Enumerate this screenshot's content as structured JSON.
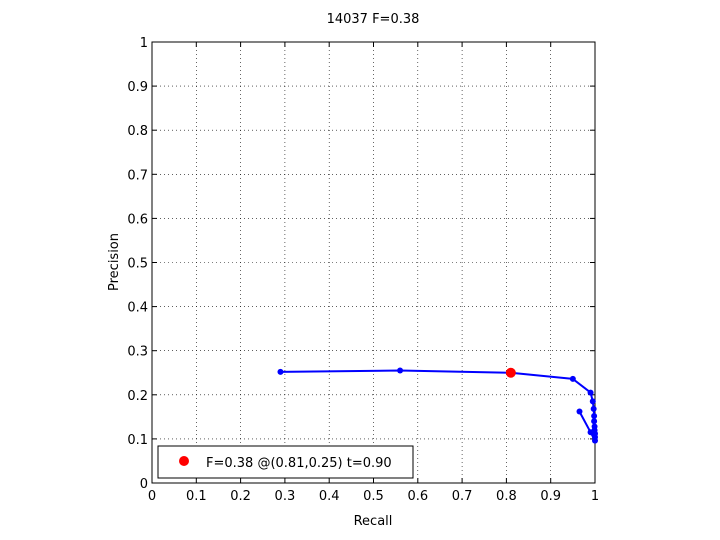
{
  "chart_data": {
    "type": "line",
    "title": "14037 F=0.38",
    "xlabel": "Recall",
    "ylabel": "Precision",
    "xlim": [
      0,
      1
    ],
    "ylim": [
      0,
      1
    ],
    "xticks": [
      0,
      0.1,
      0.2,
      0.3,
      0.4,
      0.5,
      0.6,
      0.7,
      0.8,
      0.9,
      1
    ],
    "yticks": [
      0,
      0.1,
      0.2,
      0.3,
      0.4,
      0.5,
      0.6,
      0.7,
      0.8,
      0.9,
      1
    ],
    "grid": true,
    "legend_position": "bottom-left",
    "series": [
      {
        "color": "#0000ff",
        "x": [
          0.29,
          0.56,
          0.81,
          0.95,
          0.99,
          0.995,
          0.997,
          0.998,
          0.998,
          0.999,
          0.999,
          1.0,
          1.0,
          1.0,
          0.99,
          0.965
        ],
        "y": [
          0.252,
          0.255,
          0.25,
          0.236,
          0.205,
          0.185,
          0.168,
          0.152,
          0.14,
          0.128,
          0.12,
          0.112,
          0.104,
          0.096,
          0.115,
          0.162
        ]
      },
      {
        "name": "F=0.38 @(0.81,0.25) t=0.90",
        "color": "#ff0000",
        "x": [
          0.81
        ],
        "y": [
          0.25
        ]
      }
    ]
  }
}
